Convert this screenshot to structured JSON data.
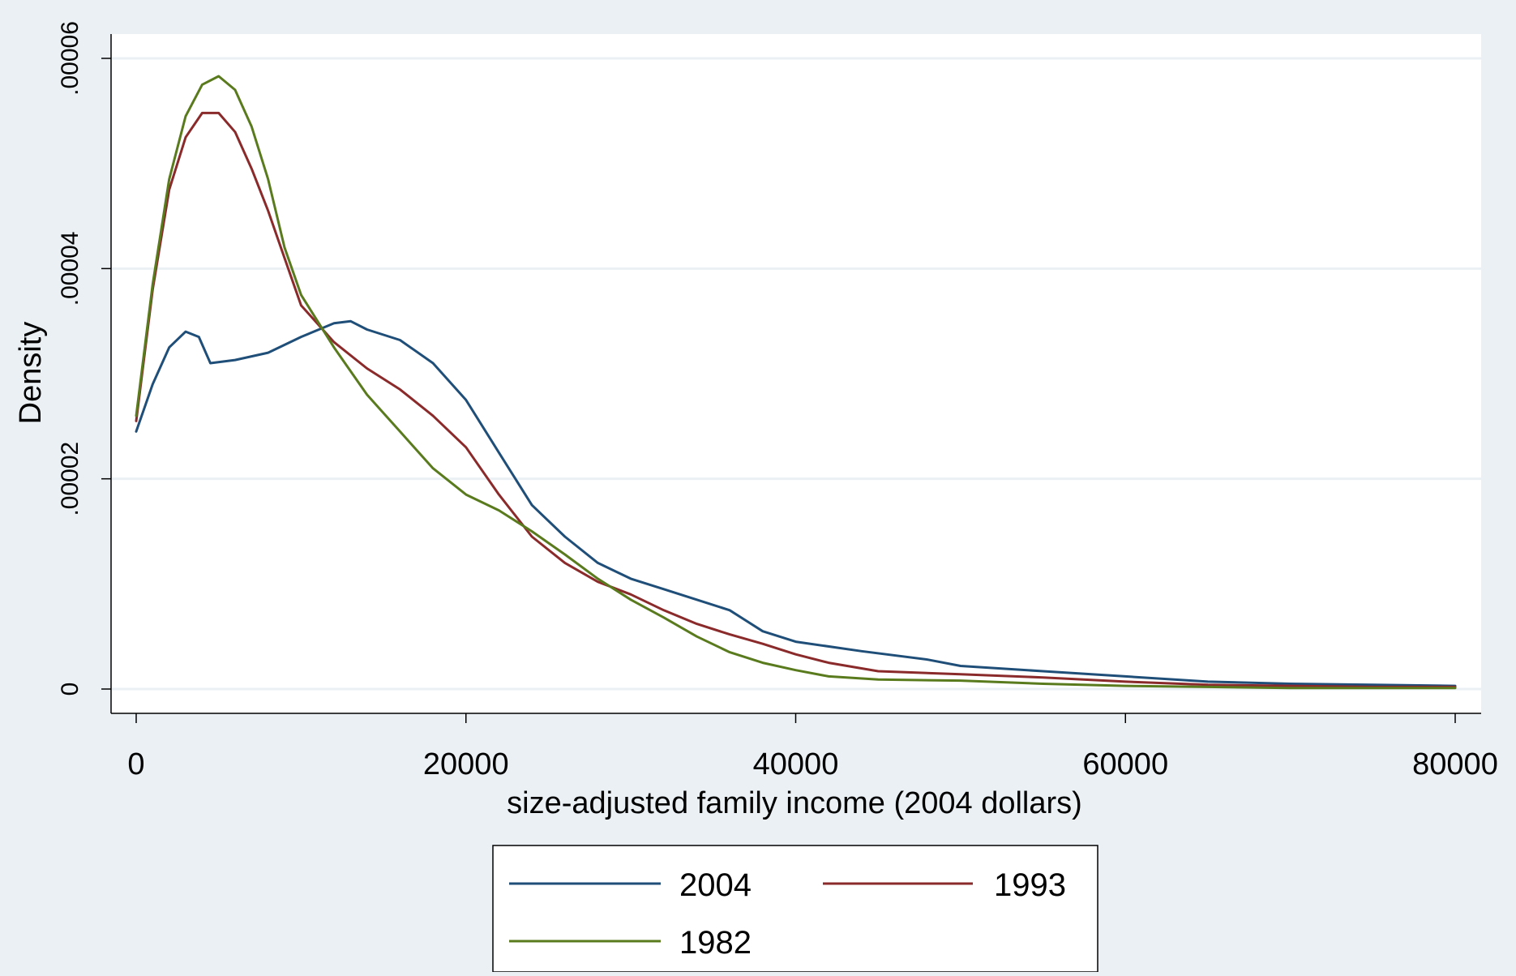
{
  "chart_data": {
    "type": "line",
    "title": "",
    "xlabel": "size-adjusted family income (2004 dollars)",
    "ylabel": "Density",
    "xlim": [
      0,
      80000
    ],
    "ylim": [
      0,
      6e-05
    ],
    "x_ticks": [
      0,
      20000,
      40000,
      60000,
      80000
    ],
    "x_tick_labels": [
      "0",
      "20000",
      "40000",
      "60000",
      "80000"
    ],
    "y_ticks": [
      0,
      2e-05,
      4e-05,
      6e-05
    ],
    "y_tick_labels": [
      "0",
      ".00002",
      ".00004",
      ".00006"
    ],
    "grid": true,
    "legend_position": "bottom",
    "series": [
      {
        "name": "2004",
        "color": "#1f4e79",
        "points": [
          [
            0,
            2.45e-05
          ],
          [
            1000,
            2.9e-05
          ],
          [
            2000,
            3.25e-05
          ],
          [
            3000,
            3.4e-05
          ],
          [
            3800,
            3.35e-05
          ],
          [
            4500,
            3.1e-05
          ],
          [
            6000,
            3.13e-05
          ],
          [
            8000,
            3.2e-05
          ],
          [
            10000,
            3.35e-05
          ],
          [
            12000,
            3.48e-05
          ],
          [
            13000,
            3.5e-05
          ],
          [
            14000,
            3.42e-05
          ],
          [
            16000,
            3.32e-05
          ],
          [
            18000,
            3.1e-05
          ],
          [
            20000,
            2.75e-05
          ],
          [
            22000,
            2.25e-05
          ],
          [
            24000,
            1.75e-05
          ],
          [
            26000,
            1.45e-05
          ],
          [
            28000,
            1.2e-05
          ],
          [
            30000,
            1.05e-05
          ],
          [
            32000,
            9.5e-06
          ],
          [
            34000,
            8.5e-06
          ],
          [
            36000,
            7.5e-06
          ],
          [
            38000,
            5.5e-06
          ],
          [
            40000,
            4.5e-06
          ],
          [
            44000,
            3.6e-06
          ],
          [
            48000,
            2.8e-06
          ],
          [
            50000,
            2.2e-06
          ],
          [
            55000,
            1.7e-06
          ],
          [
            60000,
            1.2e-06
          ],
          [
            65000,
            7e-07
          ],
          [
            70000,
            5e-07
          ],
          [
            75000,
            4e-07
          ],
          [
            80000,
            3e-07
          ]
        ]
      },
      {
        "name": "1993",
        "color": "#8b2a2a",
        "points": [
          [
            0,
            2.55e-05
          ],
          [
            1000,
            3.8e-05
          ],
          [
            2000,
            4.75e-05
          ],
          [
            3000,
            5.25e-05
          ],
          [
            4000,
            5.48e-05
          ],
          [
            5000,
            5.48e-05
          ],
          [
            6000,
            5.3e-05
          ],
          [
            7000,
            4.95e-05
          ],
          [
            8000,
            4.55e-05
          ],
          [
            9000,
            4.1e-05
          ],
          [
            10000,
            3.65e-05
          ],
          [
            12000,
            3.3e-05
          ],
          [
            14000,
            3.05e-05
          ],
          [
            16000,
            2.85e-05
          ],
          [
            18000,
            2.6e-05
          ],
          [
            20000,
            2.3e-05
          ],
          [
            22000,
            1.85e-05
          ],
          [
            24000,
            1.45e-05
          ],
          [
            26000,
            1.2e-05
          ],
          [
            28000,
            1.02e-05
          ],
          [
            30000,
            9e-06
          ],
          [
            32000,
            7.5e-06
          ],
          [
            34000,
            6.2e-06
          ],
          [
            36000,
            5.2e-06
          ],
          [
            38000,
            4.3e-06
          ],
          [
            40000,
            3.3e-06
          ],
          [
            42000,
            2.5e-06
          ],
          [
            45000,
            1.7e-06
          ],
          [
            50000,
            1.4e-06
          ],
          [
            55000,
            1.1e-06
          ],
          [
            60000,
            7e-07
          ],
          [
            65000,
            4e-07
          ],
          [
            70000,
            3e-07
          ],
          [
            75000,
            2e-07
          ],
          [
            80000,
            2e-07
          ]
        ]
      },
      {
        "name": "1982",
        "color": "#5a7a1e",
        "points": [
          [
            0,
            2.6e-05
          ],
          [
            1000,
            3.85e-05
          ],
          [
            2000,
            4.85e-05
          ],
          [
            3000,
            5.45e-05
          ],
          [
            4000,
            5.75e-05
          ],
          [
            5000,
            5.83e-05
          ],
          [
            6000,
            5.7e-05
          ],
          [
            7000,
            5.35e-05
          ],
          [
            8000,
            4.85e-05
          ],
          [
            9000,
            4.2e-05
          ],
          [
            10000,
            3.75e-05
          ],
          [
            12000,
            3.25e-05
          ],
          [
            14000,
            2.8e-05
          ],
          [
            16000,
            2.45e-05
          ],
          [
            18000,
            2.1e-05
          ],
          [
            20000,
            1.85e-05
          ],
          [
            22000,
            1.7e-05
          ],
          [
            24000,
            1.5e-05
          ],
          [
            26000,
            1.28e-05
          ],
          [
            28000,
            1.05e-05
          ],
          [
            30000,
            8.5e-06
          ],
          [
            32000,
            6.8e-06
          ],
          [
            34000,
            5e-06
          ],
          [
            36000,
            3.5e-06
          ],
          [
            38000,
            2.5e-06
          ],
          [
            40000,
            1.8e-06
          ],
          [
            42000,
            1.2e-06
          ],
          [
            45000,
            9e-07
          ],
          [
            50000,
            8e-07
          ],
          [
            55000,
            5e-07
          ],
          [
            60000,
            3e-07
          ],
          [
            65000,
            2e-07
          ],
          [
            70000,
            1e-07
          ],
          [
            75000,
            1e-07
          ],
          [
            80000,
            1e-07
          ]
        ]
      }
    ]
  },
  "legend": {
    "items": [
      {
        "label": "2004",
        "color": "#1f4e79"
      },
      {
        "label": "1993",
        "color": "#8b2a2a"
      },
      {
        "label": "1982",
        "color": "#5a7a1e"
      }
    ]
  }
}
